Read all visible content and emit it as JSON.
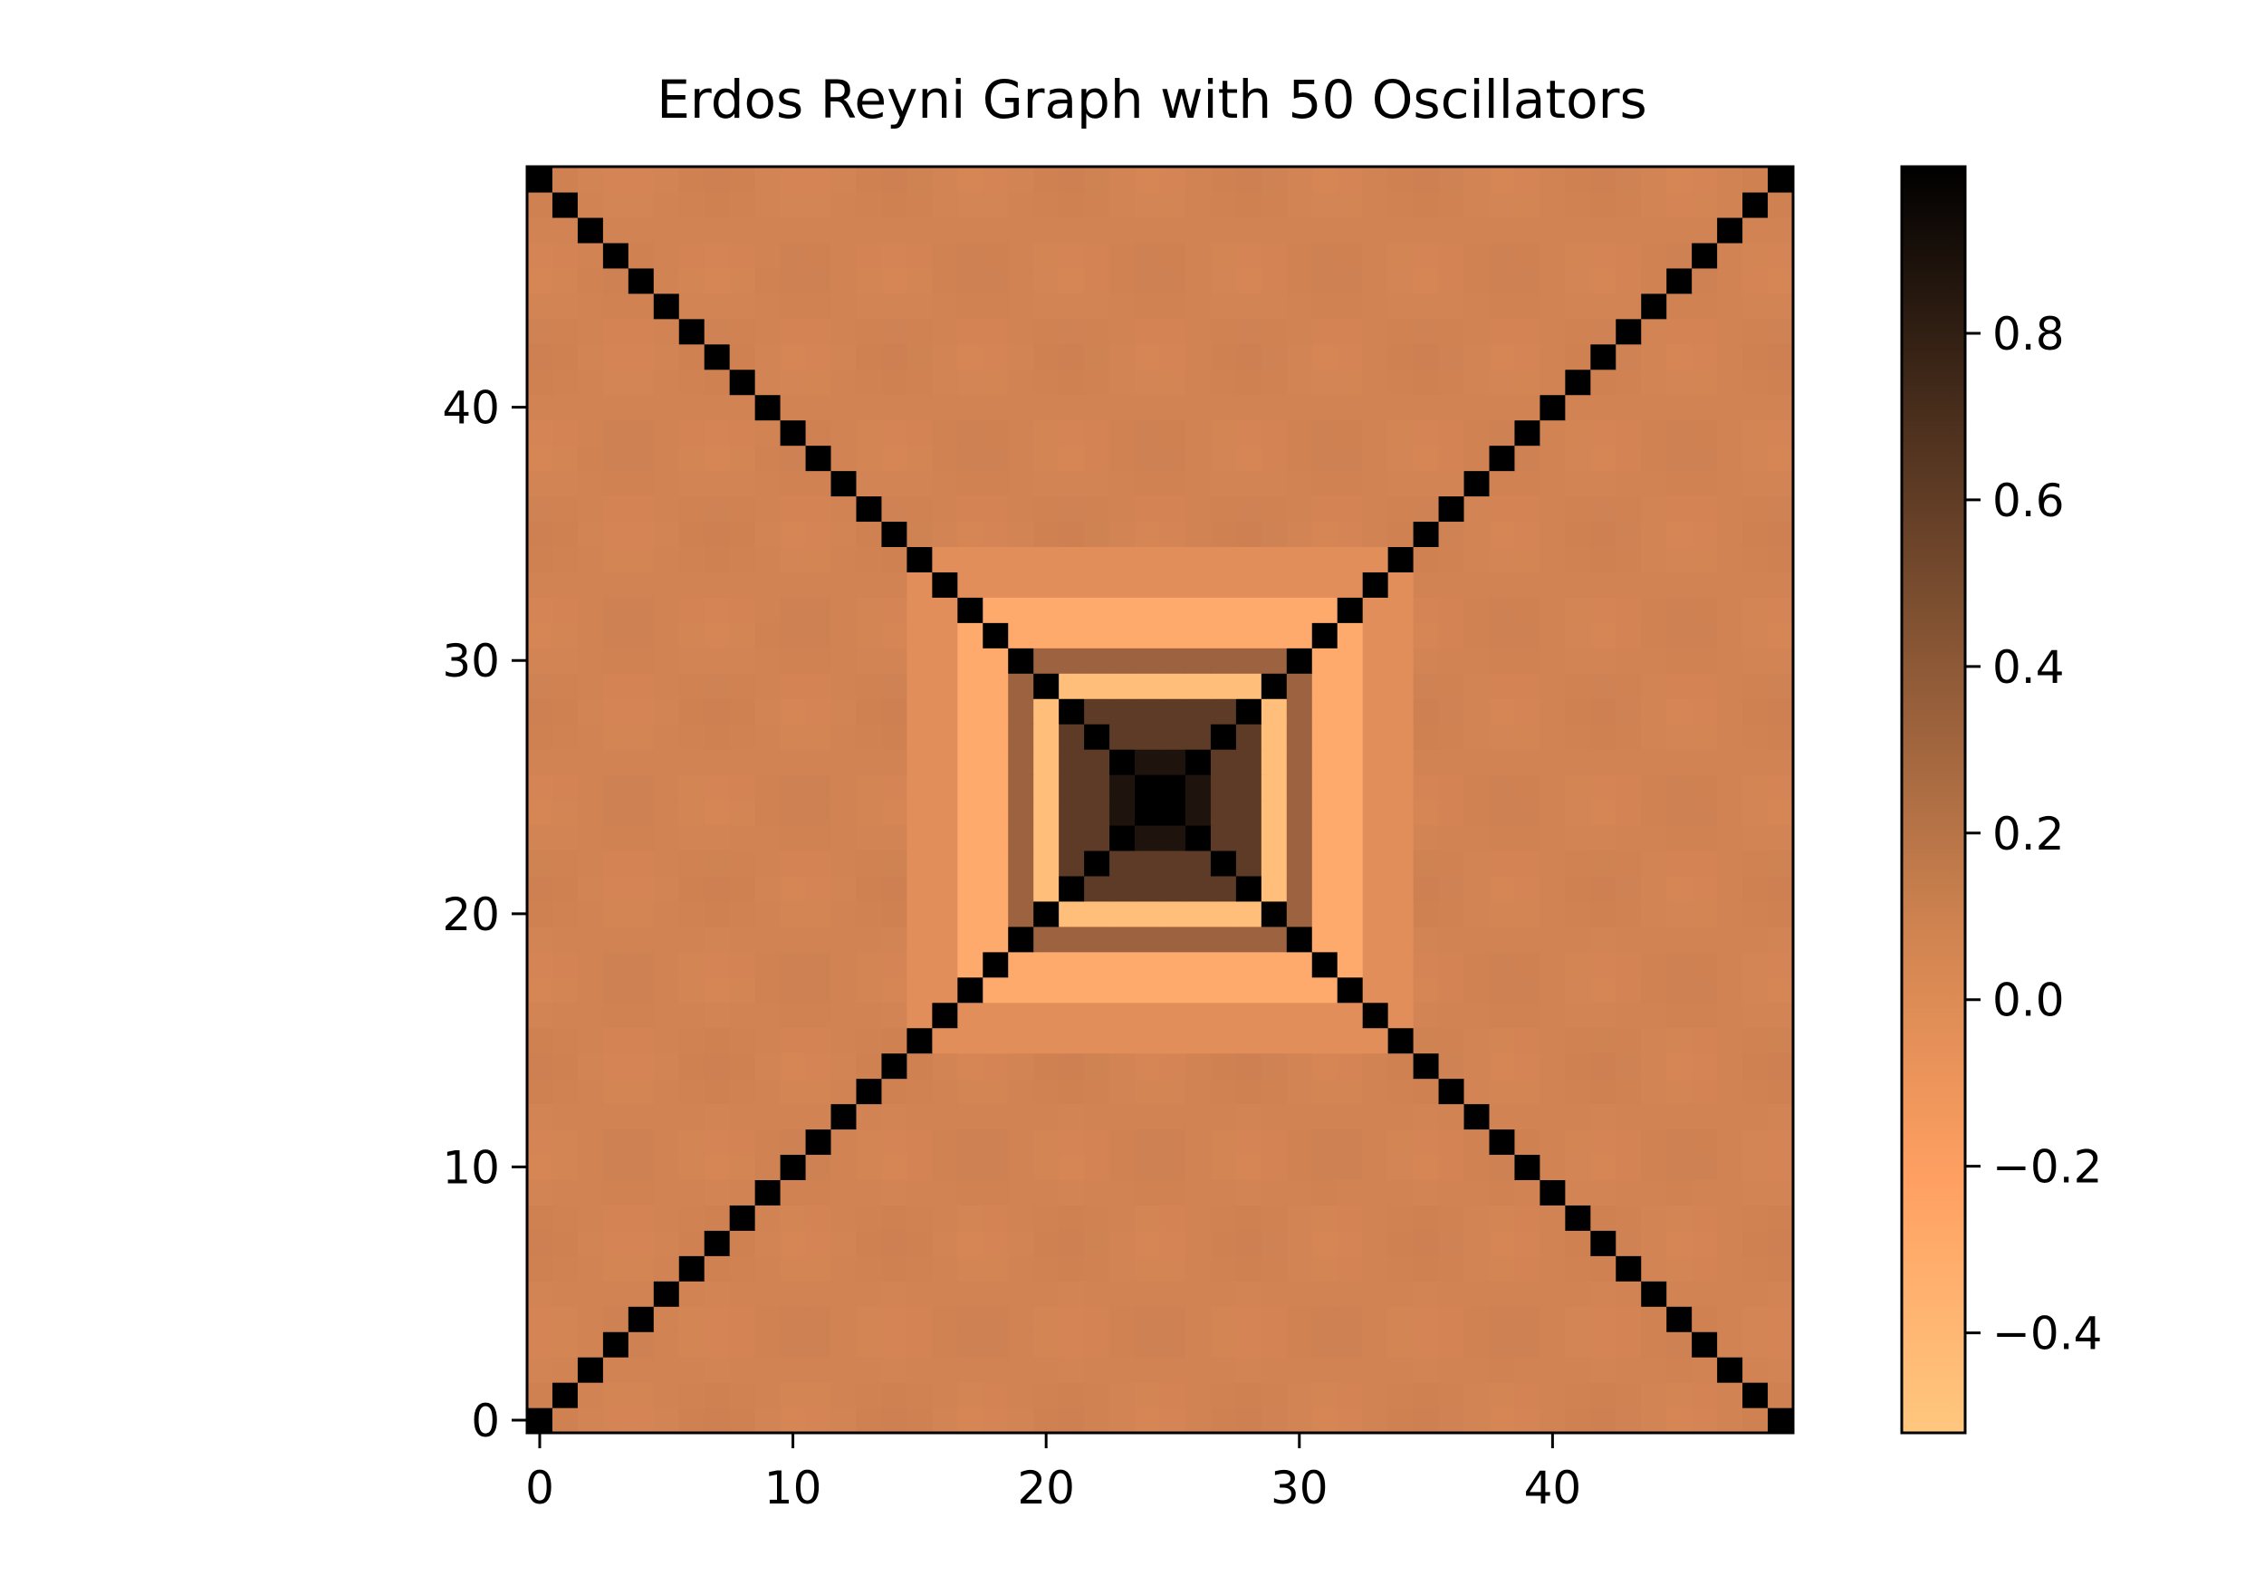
{
  "chart_data": {
    "type": "heatmap",
    "title": "Erdos Reyni Graph with 50 Oscillators",
    "xlabel": "",
    "ylabel": "",
    "rows": 50,
    "cols": 50,
    "xlim": [
      -0.5,
      49.5
    ],
    "ylim": [
      -0.5,
      49.5
    ],
    "origin": "lower",
    "x_ticks": [
      0,
      10,
      20,
      30,
      40
    ],
    "y_ticks": [
      0,
      10,
      20,
      30,
      40
    ],
    "x_tick_labels": [
      "0",
      "10",
      "20",
      "30",
      "40"
    ],
    "y_tick_labels": [
      "0",
      "10",
      "20",
      "30",
      "40"
    ],
    "colormap": "copper_r",
    "colorbar": {
      "vmin": -0.52,
      "vmax": 1.0,
      "ticks": [
        0.8,
        0.6,
        0.4,
        0.2,
        0.0,
        -0.2,
        -0.4
      ],
      "tick_labels": [
        "0.8",
        "0.6",
        "0.4",
        "0.2",
        "0.0",
        "−0.2",
        "−0.4"
      ]
    },
    "values_note": "symmetric matrix: 1.0 on both diagonals (i==j and i+j==49), background ≈ 0.0, concentric ripples around center (24.5, 24.5) with peak ≈ 1.0 at center, dark ring ≈ 0.5, light ring ≈ -0.45"
  }
}
